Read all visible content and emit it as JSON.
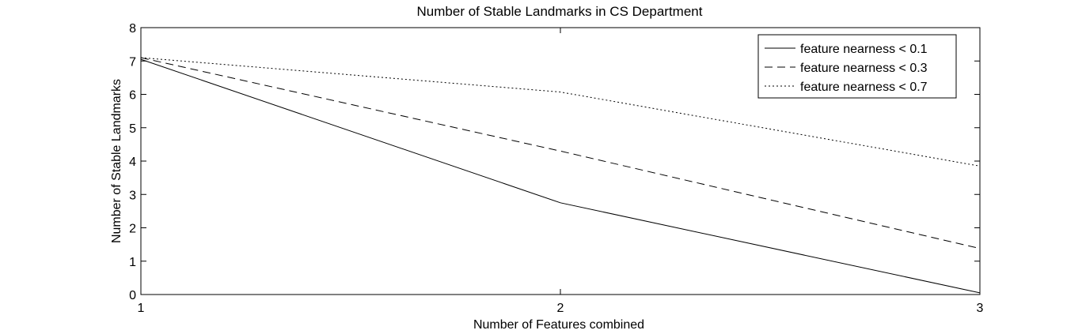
{
  "chart_data": {
    "type": "line",
    "title": "Number of Stable Landmarks in CS Department",
    "xlabel": "Number of Features combined",
    "ylabel": "Number of Stable Landmarks",
    "xlim": [
      1,
      3
    ],
    "ylim": [
      0,
      8
    ],
    "xticks": [
      1,
      2,
      3
    ],
    "yticks": [
      0,
      1,
      2,
      3,
      4,
      5,
      6,
      7,
      8
    ],
    "grid": false,
    "legend_position": "top-right",
    "x": [
      1,
      2,
      3
    ],
    "series": [
      {
        "name": "feature nearness < 0.1",
        "values": [
          7.05,
          2.75,
          0.05
        ],
        "line_style": "solid"
      },
      {
        "name": "feature nearness < 0.3",
        "values": [
          7.1,
          4.3,
          1.38
        ],
        "line_style": "dashed"
      },
      {
        "name": "feature nearness < 0.7",
        "values": [
          7.1,
          6.07,
          3.85
        ],
        "line_style": "dotted"
      }
    ],
    "line_color": "#000000"
  }
}
